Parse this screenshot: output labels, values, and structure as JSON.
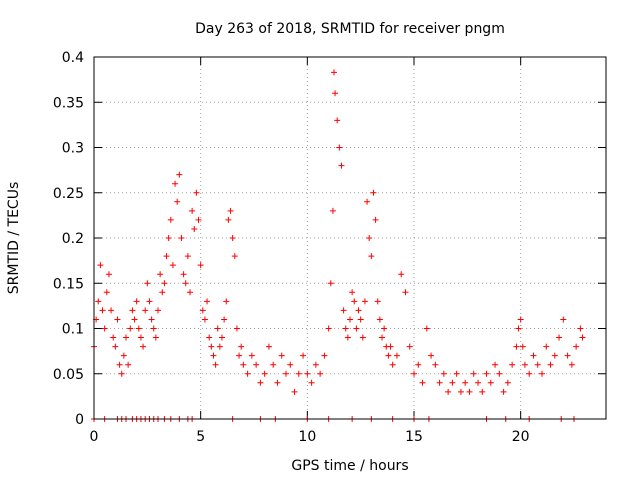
{
  "chart_data": {
    "type": "scatter",
    "title": "Day 263 of 2018, SRMTID for receiver pngm",
    "xlabel": "GPS time / hours",
    "ylabel": "SRMTID / TECUs",
    "xlim": [
      0,
      24
    ],
    "ylim": [
      0,
      0.4
    ],
    "xticks": [
      "0",
      "5",
      "10",
      "15",
      "20"
    ],
    "xtick_values": [
      0,
      5,
      10,
      15,
      20
    ],
    "yticks": [
      "0",
      "0.05",
      "0.1",
      "0.15",
      "0.2",
      "0.25",
      "0.3",
      "0.35",
      "0.4"
    ],
    "ytick_values": [
      0,
      0.05,
      0.1,
      0.15,
      0.2,
      0.25,
      0.3,
      0.35,
      0.4
    ],
    "grid": true,
    "marker": "+",
    "color": "#ff0000",
    "series": [
      {
        "name": "SRMTID",
        "x": [
          0.0,
          0.1,
          0.2,
          0.3,
          0.4,
          0.5,
          0.6,
          0.7,
          0.8,
          0.9,
          1.0,
          1.1,
          1.2,
          1.3,
          1.4,
          1.5,
          1.6,
          1.7,
          1.8,
          1.9,
          2.0,
          2.1,
          2.2,
          2.3,
          2.4,
          2.5,
          2.6,
          2.7,
          2.8,
          2.9,
          3.0,
          3.1,
          3.2,
          3.3,
          3.4,
          3.5,
          3.6,
          3.7,
          3.8,
          3.9,
          4.0,
          4.1,
          4.2,
          4.3,
          4.4,
          4.5,
          4.6,
          4.7,
          4.8,
          4.9,
          5.0,
          5.1,
          5.2,
          5.3,
          5.4,
          5.5,
          5.6,
          5.7,
          5.8,
          5.9,
          6.0,
          6.1,
          6.2,
          6.3,
          6.4,
          6.5,
          6.6,
          6.7,
          6.8,
          6.9,
          7.0,
          7.2,
          7.4,
          7.6,
          7.8,
          8.0,
          8.2,
          8.4,
          8.6,
          8.8,
          9.0,
          9.2,
          9.4,
          9.6,
          9.8,
          10.0,
          10.2,
          10.4,
          10.6,
          10.8,
          11.0,
          11.1,
          11.2,
          11.25,
          11.3,
          11.4,
          11.5,
          11.6,
          11.7,
          11.8,
          11.9,
          12.0,
          12.1,
          12.2,
          12.3,
          12.4,
          12.5,
          12.6,
          12.7,
          12.8,
          12.9,
          13.0,
          13.1,
          13.2,
          13.3,
          13.4,
          13.5,
          13.6,
          13.7,
          13.8,
          13.9,
          14.0,
          14.2,
          14.4,
          14.6,
          14.8,
          15.0,
          15.2,
          15.4,
          15.6,
          15.8,
          16.0,
          16.2,
          16.4,
          16.6,
          16.8,
          17.0,
          17.2,
          17.4,
          17.6,
          17.8,
          18.0,
          18.2,
          18.4,
          18.6,
          18.8,
          19.0,
          19.2,
          19.4,
          19.6,
          19.8,
          19.9,
          20.0,
          20.1,
          20.2,
          20.4,
          20.6,
          20.8,
          21.0,
          21.2,
          21.4,
          21.6,
          21.8,
          22.0,
          22.2,
          22.4,
          22.6,
          22.8,
          22.9,
          0.0,
          0.5,
          1.1,
          1.3,
          1.5,
          1.8,
          2.0,
          2.2,
          2.4,
          2.6,
          2.8,
          3.0,
          3.3,
          3.6,
          4.0,
          4.4,
          4.6,
          6.5,
          7.8,
          8.5,
          10.0,
          11.0,
          12.1,
          13.0,
          14.0,
          15.0,
          15.7,
          18.4,
          19.3,
          20.4,
          21.9,
          22.5
        ],
        "y": [
          0.08,
          0.11,
          0.13,
          0.17,
          0.12,
          0.1,
          0.14,
          0.16,
          0.12,
          0.09,
          0.08,
          0.11,
          0.06,
          0.05,
          0.07,
          0.09,
          0.06,
          0.1,
          0.12,
          0.11,
          0.13,
          0.1,
          0.09,
          0.08,
          0.12,
          0.15,
          0.13,
          0.11,
          0.1,
          0.09,
          0.12,
          0.16,
          0.14,
          0.15,
          0.18,
          0.2,
          0.22,
          0.17,
          0.26,
          0.24,
          0.27,
          0.2,
          0.16,
          0.15,
          0.18,
          0.14,
          0.23,
          0.21,
          0.25,
          0.22,
          0.17,
          0.12,
          0.11,
          0.13,
          0.09,
          0.08,
          0.07,
          0.06,
          0.1,
          0.08,
          0.09,
          0.11,
          0.13,
          0.22,
          0.23,
          0.2,
          0.18,
          0.1,
          0.07,
          0.08,
          0.06,
          0.05,
          0.07,
          0.06,
          0.04,
          0.05,
          0.08,
          0.06,
          0.04,
          0.07,
          0.05,
          0.06,
          0.03,
          0.05,
          0.07,
          0.05,
          0.04,
          0.06,
          0.05,
          0.07,
          0.1,
          0.15,
          0.23,
          0.383,
          0.36,
          0.33,
          0.3,
          0.28,
          0.12,
          0.1,
          0.09,
          0.11,
          0.14,
          0.13,
          0.1,
          0.12,
          0.11,
          0.09,
          0.13,
          0.24,
          0.2,
          0.18,
          0.25,
          0.22,
          0.13,
          0.11,
          0.09,
          0.1,
          0.08,
          0.07,
          0.08,
          0.06,
          0.07,
          0.16,
          0.14,
          0.08,
          0.05,
          0.06,
          0.04,
          0.1,
          0.07,
          0.06,
          0.04,
          0.05,
          0.03,
          0.04,
          0.05,
          0.03,
          0.04,
          0.03,
          0.05,
          0.04,
          0.03,
          0.05,
          0.04,
          0.06,
          0.05,
          0.03,
          0.04,
          0.06,
          0.08,
          0.1,
          0.11,
          0.08,
          0.06,
          0.05,
          0.07,
          0.06,
          0.05,
          0.08,
          0.06,
          0.07,
          0.09,
          0.11,
          0.07,
          0.06,
          0.08,
          0.1,
          0.09,
          0.0,
          0.0,
          0.0,
          0.0,
          0.0,
          0.0,
          0.0,
          0.0,
          0.0,
          0.0,
          0.0,
          0.0,
          0.0,
          0.0,
          0.0,
          0.0,
          0.0,
          0.0,
          0.0,
          0.0,
          0.0,
          0.0,
          0.0,
          0.0,
          0.0,
          0.0,
          0.0,
          0.0,
          0.0,
          0.0,
          0.0,
          0.0
        ]
      }
    ]
  }
}
